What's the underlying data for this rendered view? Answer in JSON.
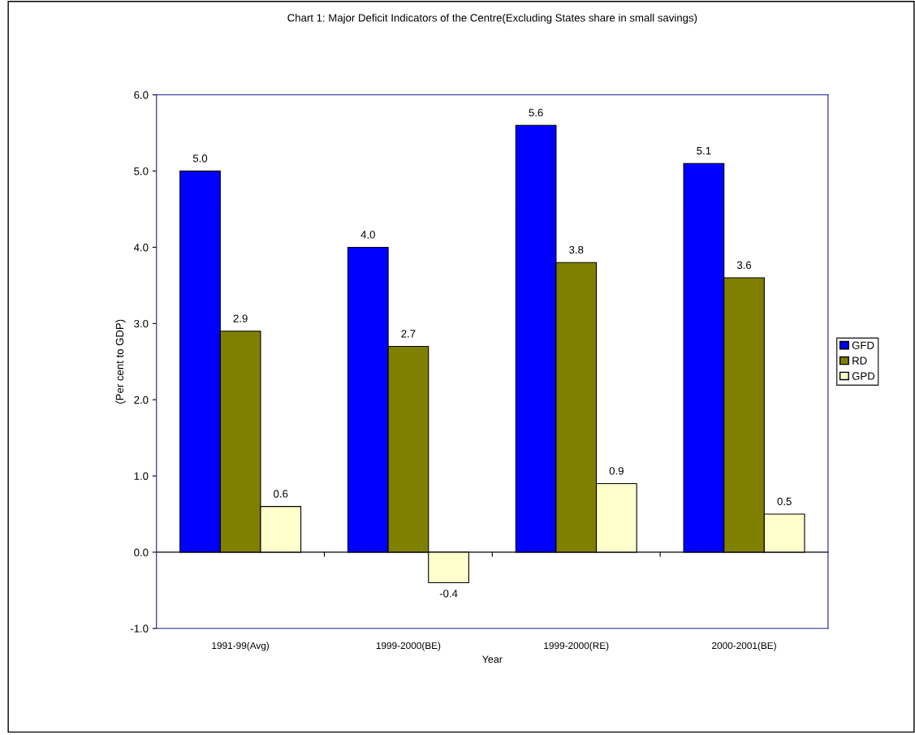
{
  "chart_data": {
    "type": "bar",
    "title": "Chart 1: Major Deficit Indicators of the Centre(Excluding States share in small savings)",
    "xlabel": "Year",
    "ylabel": "(Per cent to GDP)",
    "categories": [
      "1991-99(Avg)",
      "1999-2000(BE)",
      "1999-2000(RE)",
      "2000-2001(BE)"
    ],
    "series": [
      {
        "name": "GFD",
        "color": "#0000ff",
        "values": [
          5.0,
          4.0,
          5.6,
          5.1
        ],
        "value_labels": [
          "5.0",
          "4.0",
          "5.6",
          "5.1"
        ]
      },
      {
        "name": "RD",
        "color": "#808000",
        "values": [
          2.9,
          2.7,
          3.8,
          3.6
        ],
        "value_labels": [
          "2.9",
          "2.7",
          "3.8",
          "3.6"
        ]
      },
      {
        "name": "GPD",
        "color": "#ffffcc",
        "values": [
          0.6,
          -0.4,
          0.9,
          0.5
        ],
        "value_labels": [
          "0.6",
          "-0.4",
          "0.9",
          "0.5"
        ]
      }
    ],
    "ylim": [
      -1,
      6
    ],
    "yticks": [
      {
        "value": -1,
        "label": "-1.0"
      },
      {
        "value": 0,
        "label": "0.0"
      },
      {
        "value": 1,
        "label": "1.0"
      },
      {
        "value": 2,
        "label": "2.0"
      },
      {
        "value": 3,
        "label": "3.0"
      },
      {
        "value": 4,
        "label": "4.0"
      },
      {
        "value": 5,
        "label": "5.0"
      },
      {
        "value": 6,
        "label": "6.0"
      }
    ],
    "legend": "right"
  }
}
